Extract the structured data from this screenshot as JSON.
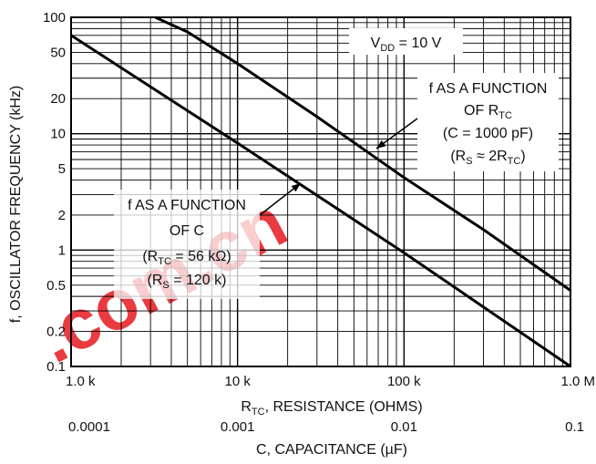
{
  "chart_data": {
    "type": "line",
    "x_scale": "log",
    "y_scale": "log",
    "xlim": [
      1000,
      1000000
    ],
    "ylim": [
      0.1,
      100
    ],
    "grid": true,
    "xlabel": {
      "main": "R",
      "sub": "TC",
      "rest": ", RESISTANCE (OHMS)"
    },
    "x2label": "C, CAPACITANCE (µF)",
    "ylabel": "f, OSCILLATOR FREQUENCY (kHz)",
    "x_ticks": [
      {
        "value": 1000,
        "label": "1.0 k"
      },
      {
        "value": 10000,
        "label": "10 k"
      },
      {
        "value": 100000,
        "label": "100 k"
      },
      {
        "value": 1000000,
        "label": "1.0 M"
      }
    ],
    "x2_ticks": [
      {
        "value": 1000,
        "label": "0.0001"
      },
      {
        "value": 10000,
        "label": "0.001"
      },
      {
        "value": 100000,
        "label": "0.01"
      },
      {
        "value": 1000000,
        "label": "0.1"
      }
    ],
    "y_ticks": [
      {
        "value": 100,
        "label": "100"
      },
      {
        "value": 50,
        "label": "50"
      },
      {
        "value": 20,
        "label": "20"
      },
      {
        "value": 10,
        "label": "10"
      },
      {
        "value": 5,
        "label": "5"
      },
      {
        "value": 2,
        "label": "2"
      },
      {
        "value": 1,
        "label": "1"
      },
      {
        "value": 0.5,
        "label": "0.5"
      },
      {
        "value": 0.2,
        "label": "0.2"
      },
      {
        "value": 0.1,
        "label": "0.1"
      }
    ],
    "series": [
      {
        "x": [
          3200,
          5000,
          10000,
          30000,
          100000,
          300000,
          1000000
        ],
        "y": [
          100,
          75,
          40,
          14,
          4.2,
          1.5,
          0.45
        ]
      },
      {
        "x": [
          1000,
          10000,
          100000,
          1000000
        ],
        "y": [
          70,
          8.3,
          0.95,
          0.1
        ]
      }
    ],
    "annotations": [
      {
        "lines": [
          {
            "parts": [
              {
                "t": "V"
              },
              {
                "t": "DD",
                "sub": true
              },
              {
                "t": " = 10 V"
              }
            ]
          }
        ]
      },
      {
        "lines": [
          {
            "parts": [
              {
                "t": "f AS A FUNCTION"
              }
            ]
          },
          {
            "parts": [
              {
                "t": "OF R"
              },
              {
                "t": "TC",
                "sub": true
              }
            ]
          },
          {
            "parts": [
              {
                "t": "(C = 1000 pF)"
              }
            ]
          },
          {
            "parts": [
              {
                "t": "(R"
              },
              {
                "t": "S",
                "sub": true
              },
              {
                "t": " ≈ 2R"
              },
              {
                "t": "TC",
                "sub": true
              },
              {
                "t": ")"
              }
            ]
          }
        ]
      },
      {
        "lines": [
          {
            "parts": [
              {
                "t": "f AS A FUNCTION"
              }
            ]
          },
          {
            "parts": [
              {
                "t": "OF C"
              }
            ]
          },
          {
            "parts": [
              {
                "t": "(R"
              },
              {
                "t": "TC",
                "sub": true
              },
              {
                "t": " = 56 kΩ)"
              }
            ]
          },
          {
            "parts": [
              {
                "t": "(R"
              },
              {
                "t": "S",
                "sub": true
              },
              {
                "t": " = 120 k)"
              }
            ]
          }
        ]
      }
    ]
  },
  "watermark": {
    "text": ".com.cn",
    "color": "#e8262b"
  }
}
